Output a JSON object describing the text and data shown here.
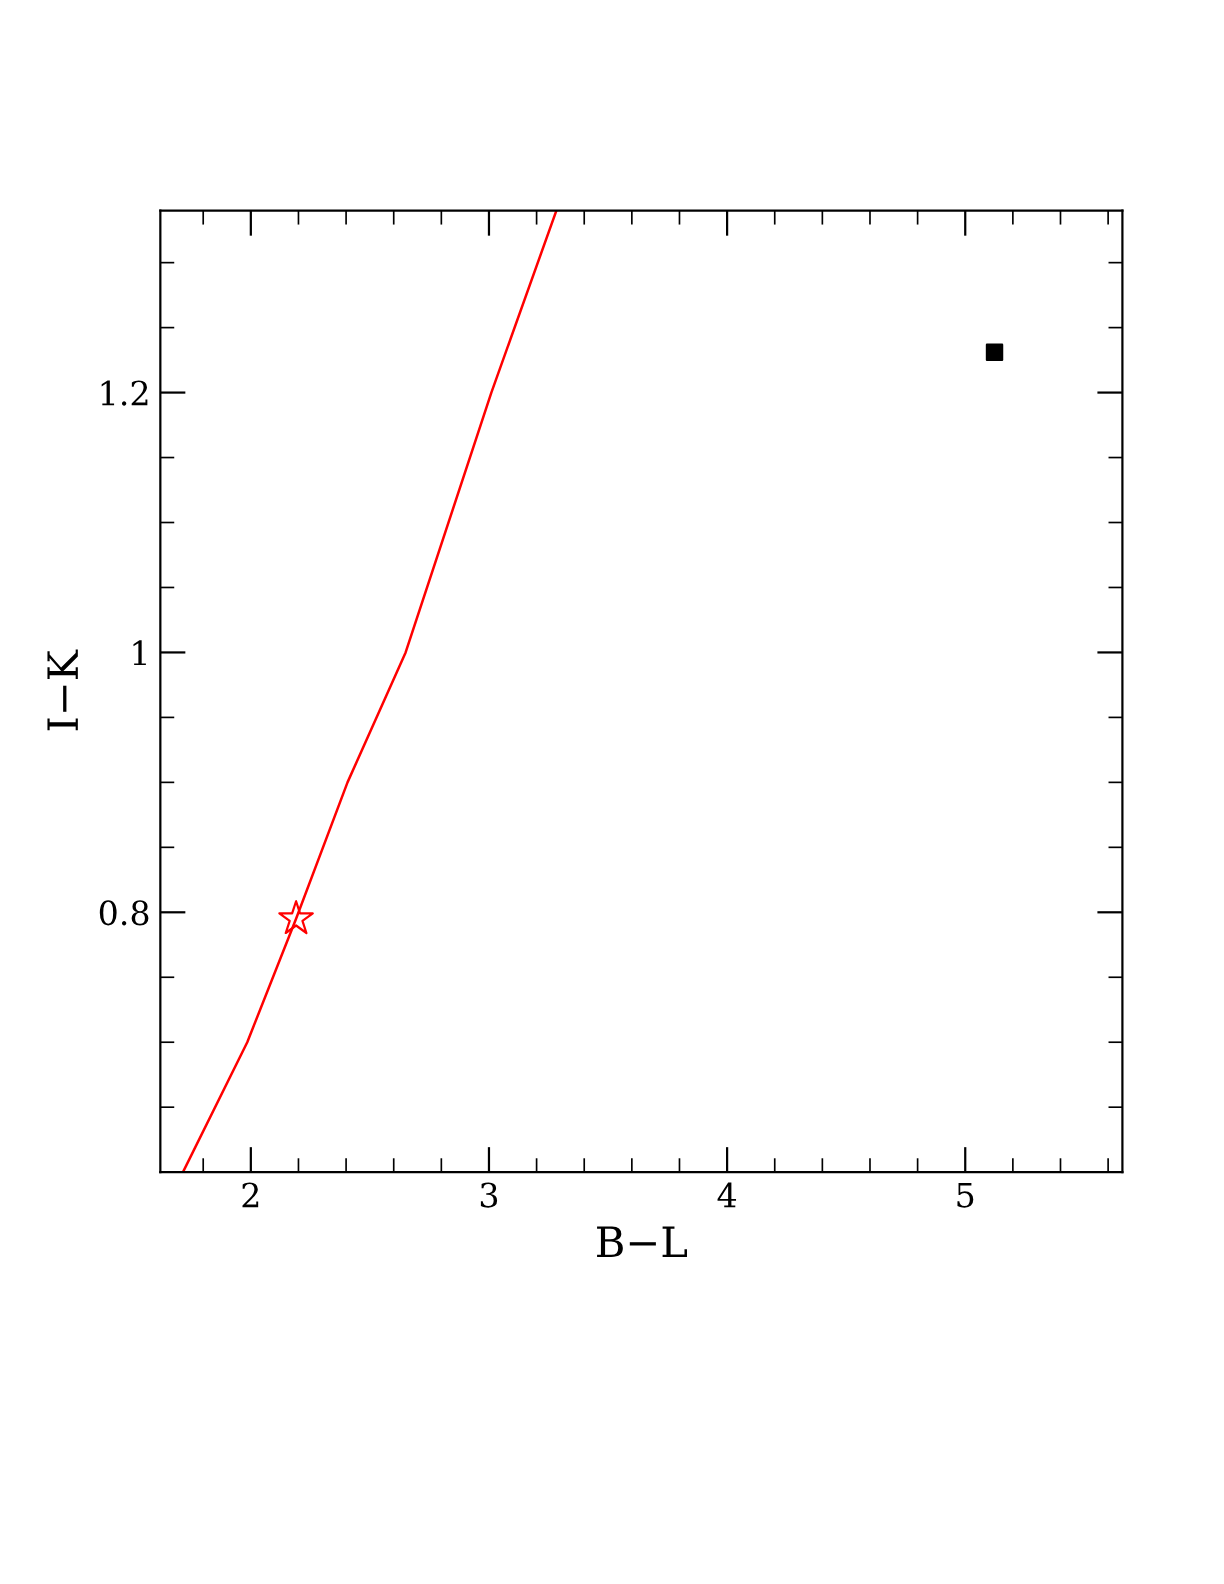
{
  "chart_data": {
    "type": "line",
    "xlabel": "B−L",
    "ylabel": "I−K",
    "xlim": [
      1.62,
      5.66
    ],
    "ylim": [
      0.6,
      1.34
    ],
    "xticks": [
      2,
      3,
      4,
      5
    ],
    "yticks": [
      {
        "value": 0.8,
        "label": "0.8"
      },
      {
        "value": 1,
        "label": "1"
      },
      {
        "value": 1.2,
        "label": "1.2"
      }
    ],
    "grid": false,
    "series": [
      {
        "color": "#ff0000",
        "marker": "none",
        "line_style": "solid",
        "x": [
          1.715,
          1.985,
          2.19,
          2.406,
          2.65,
          3.01,
          3.283
        ],
        "values": [
          0.6,
          0.7,
          0.795,
          0.9,
          1.0,
          1.2,
          1.34
        ]
      },
      {
        "type": "scatter",
        "color": "#ff0000",
        "marker": "star",
        "x": [
          2.19
        ],
        "values": [
          0.795
        ]
      },
      {
        "type": "scatter",
        "color": "#000000",
        "marker": "square",
        "x": [
          5.123
        ],
        "values": [
          1.231
        ]
      }
    ]
  }
}
